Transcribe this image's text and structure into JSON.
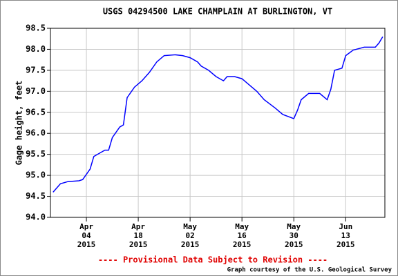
{
  "chart_data": {
    "type": "line",
    "title": "USGS 04294500 LAKE CHAMPLAIN AT BURLINGTON, VT",
    "y_label": "Gage height, feet",
    "note": "---- Provisional Data Subject to Revision ----",
    "credit": "Graph courtesy of the U.S. Geological Survey",
    "color": "#0000ff",
    "grid": true,
    "x": [
      "2015-03-26",
      "2015-03-28",
      "2015-03-30",
      "2015-04-02",
      "2015-04-03",
      "2015-04-05",
      "2015-04-06",
      "2015-04-08",
      "2015-04-09",
      "2015-04-10",
      "2015-04-11",
      "2015-04-13",
      "2015-04-14",
      "2015-04-15",
      "2015-04-17",
      "2015-04-19",
      "2015-04-21",
      "2015-04-23",
      "2015-04-25",
      "2015-04-28",
      "2015-04-30",
      "2015-05-02",
      "2015-05-04",
      "2015-05-05",
      "2015-05-07",
      "2015-05-09",
      "2015-05-11",
      "2015-05-12",
      "2015-05-14",
      "2015-05-16",
      "2015-05-18",
      "2015-05-20",
      "2015-05-22",
      "2015-05-25",
      "2015-05-27",
      "2015-05-30",
      "2015-05-31",
      "2015-06-01",
      "2015-06-03",
      "2015-06-06",
      "2015-06-08",
      "2015-06-09",
      "2015-06-10",
      "2015-06-12",
      "2015-06-13",
      "2015-06-15",
      "2015-06-18",
      "2015-06-21",
      "2015-06-22",
      "2015-06-23"
    ],
    "values": [
      94.6,
      94.8,
      94.85,
      94.87,
      94.9,
      95.15,
      95.45,
      95.55,
      95.6,
      95.6,
      95.9,
      96.15,
      96.2,
      96.85,
      97.1,
      97.25,
      97.45,
      97.7,
      97.85,
      97.87,
      97.85,
      97.8,
      97.7,
      97.6,
      97.5,
      97.35,
      97.25,
      97.35,
      97.35,
      97.3,
      97.15,
      97.0,
      96.8,
      96.6,
      96.45,
      96.35,
      96.55,
      96.8,
      96.95,
      96.95,
      96.8,
      97.05,
      97.5,
      97.55,
      97.85,
      97.98,
      98.05,
      98.05,
      98.15,
      98.3
    ],
    "xlim": [
      "2015-03-25T07:00:00Z",
      "2015-06-23T14:00:00Z"
    ],
    "xticks": [
      {
        "value": "2015-04-04",
        "label": "Apr 04 2015"
      },
      {
        "value": "2015-04-18",
        "label": "Apr 18 2015"
      },
      {
        "value": "2015-05-02",
        "label": "May 02 2015"
      },
      {
        "value": "2015-05-16",
        "label": "May 16 2015"
      },
      {
        "value": "2015-05-30",
        "label": "May 30 2015"
      },
      {
        "value": "2015-06-13",
        "label": "Jun 13 2015"
      }
    ],
    "ylim": [
      94,
      98.5
    ],
    "yticks": [
      {
        "value": 94,
        "label": "94.0"
      },
      94.5,
      {
        "value": 95,
        "label": "95.0"
      },
      95.5,
      {
        "value": 96,
        "label": "96.0"
      },
      96.5,
      {
        "value": 97,
        "label": "97.0"
      },
      97.5,
      {
        "value": 98,
        "label": "98.0"
      },
      98.5
    ]
  }
}
